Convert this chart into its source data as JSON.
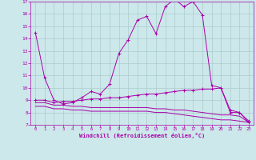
{
  "xlabel": "Windchill (Refroidissement éolien,°C)",
  "bg_color": "#cce8ea",
  "line_color": "#aa00aa",
  "grid_color": "#aacccc",
  "xlim": [
    -0.5,
    23.5
  ],
  "ylim": [
    7,
    17
  ],
  "yticks": [
    7,
    8,
    9,
    10,
    11,
    12,
    13,
    14,
    15,
    16,
    17
  ],
  "xticks": [
    0,
    1,
    2,
    3,
    4,
    5,
    6,
    7,
    8,
    9,
    10,
    11,
    12,
    13,
    14,
    15,
    16,
    17,
    18,
    19,
    20,
    21,
    22,
    23
  ],
  "line1_x": [
    0,
    1,
    2,
    3,
    4,
    5,
    6,
    7,
    8,
    9,
    10,
    11,
    12,
    13,
    14,
    15,
    16,
    17,
    18,
    19,
    20,
    21,
    22,
    23
  ],
  "line1_y": [
    14.5,
    10.8,
    9.0,
    8.7,
    8.8,
    9.2,
    9.7,
    9.5,
    10.3,
    12.8,
    13.9,
    15.5,
    15.8,
    14.4,
    16.6,
    17.2,
    16.6,
    17.0,
    15.9,
    10.2,
    10.0,
    8.0,
    8.0,
    7.2
  ],
  "line2_x": [
    0,
    1,
    2,
    3,
    4,
    5,
    6,
    7,
    8,
    9,
    10,
    11,
    12,
    13,
    14,
    15,
    16,
    17,
    18,
    19,
    20,
    21,
    22,
    23
  ],
  "line2_y": [
    9.0,
    9.0,
    8.8,
    8.9,
    8.9,
    9.0,
    9.1,
    9.1,
    9.2,
    9.2,
    9.3,
    9.4,
    9.5,
    9.5,
    9.6,
    9.7,
    9.8,
    9.8,
    9.9,
    9.9,
    10.0,
    8.2,
    8.0,
    7.3
  ],
  "line3_x": [
    0,
    1,
    2,
    3,
    4,
    5,
    6,
    7,
    8,
    9,
    10,
    11,
    12,
    13,
    14,
    15,
    16,
    17,
    18,
    19,
    20,
    21,
    22,
    23
  ],
  "line3_y": [
    8.8,
    8.8,
    8.6,
    8.6,
    8.5,
    8.5,
    8.4,
    8.4,
    8.4,
    8.4,
    8.4,
    8.4,
    8.4,
    8.3,
    8.3,
    8.2,
    8.2,
    8.1,
    8.0,
    7.9,
    7.8,
    7.8,
    7.7,
    7.2
  ],
  "line4_x": [
    0,
    1,
    2,
    3,
    4,
    5,
    6,
    7,
    8,
    9,
    10,
    11,
    12,
    13,
    14,
    15,
    16,
    17,
    18,
    19,
    20,
    21,
    22,
    23
  ],
  "line4_y": [
    8.5,
    8.5,
    8.3,
    8.3,
    8.2,
    8.2,
    8.1,
    8.1,
    8.1,
    8.1,
    8.1,
    8.1,
    8.1,
    8.0,
    8.0,
    7.9,
    7.8,
    7.7,
    7.6,
    7.5,
    7.4,
    7.4,
    7.3,
    7.2
  ]
}
